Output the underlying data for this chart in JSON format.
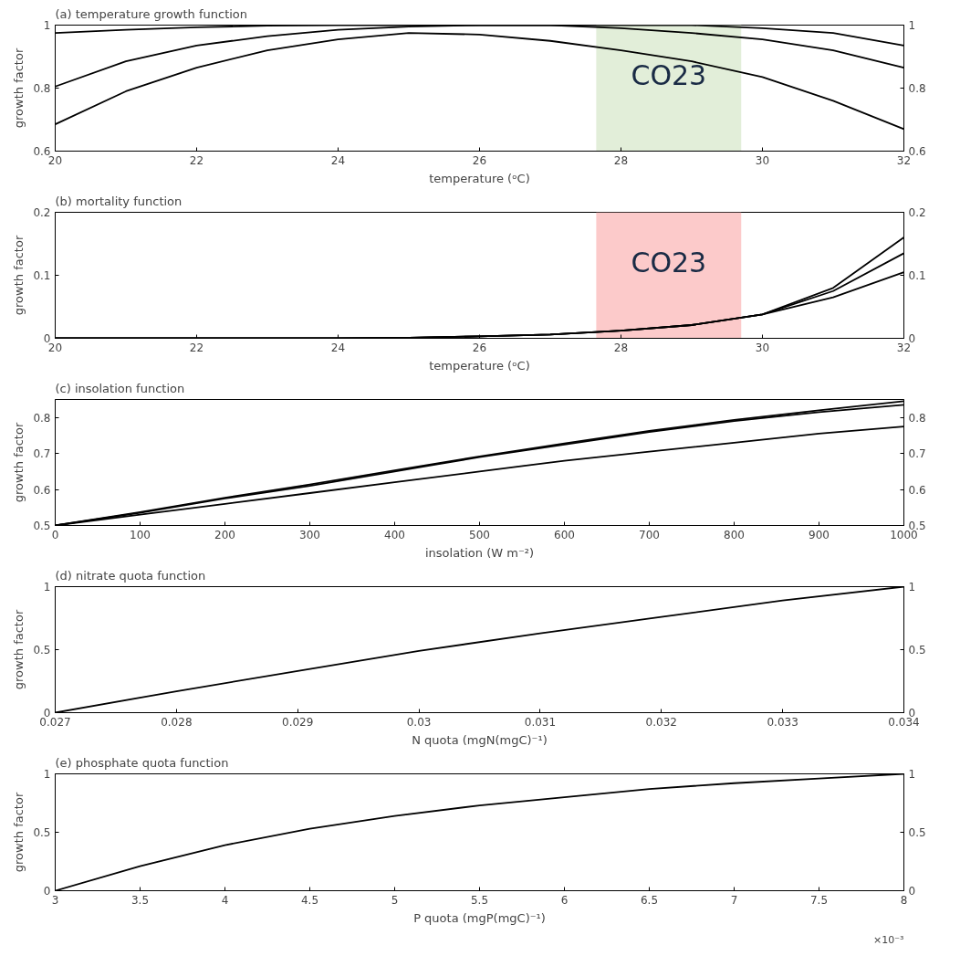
{
  "chart_data": [
    {
      "type": "line",
      "title": "(a) temperature growth function",
      "xlabel": "temperature (ᵒC)",
      "ylabel": "growth factor",
      "x": [
        20,
        21,
        22,
        23,
        24,
        25,
        26,
        27,
        28,
        29,
        30,
        31,
        32
      ],
      "series": [
        {
          "color": "#000000",
          "values": [
            0.975,
            0.985,
            0.993,
            0.998,
            1,
            1,
            1,
            1,
            1,
            1,
            0.99,
            0.975,
            0.935
          ]
        },
        {
          "color": "#000000",
          "values": [
            0.805,
            0.885,
            0.935,
            0.965,
            0.985,
            0.995,
            1,
            1,
            0.99,
            0.975,
            0.955,
            0.92,
            0.865
          ]
        },
        {
          "color": "#000000",
          "values": [
            0.685,
            0.79,
            0.865,
            0.92,
            0.955,
            0.975,
            0.97,
            0.95,
            0.92,
            0.885,
            0.835,
            0.76,
            0.67
          ]
        }
      ],
      "xlim": [
        20,
        32
      ],
      "xticks": [
        20,
        22,
        24,
        26,
        28,
        30,
        32
      ],
      "ylim": [
        0.6,
        1
      ],
      "yticks": [
        0.6,
        0.8,
        1
      ],
      "y2lim": [
        0.6,
        1
      ],
      "y2ticks": [
        0.6,
        0.8,
        1
      ],
      "bands": [
        {
          "axis": "x",
          "from": 27.65,
          "to": 29.7,
          "label": "CO23",
          "color": "#e2eed9"
        }
      ],
      "grid": false
    },
    {
      "type": "line",
      "title": "(b) mortality function",
      "xlabel": "temperature (ᵒC)",
      "ylabel": "growth factor",
      "x": [
        20,
        21,
        22,
        23,
        24,
        25,
        26,
        27,
        28,
        29,
        30,
        31,
        32
      ],
      "series": [
        {
          "color": "#000000",
          "values": [
            0,
            0,
            0,
            0,
            0,
            0.001,
            0.003,
            0.006,
            0.012,
            0.021,
            0.038,
            0.08,
            0.16
          ]
        },
        {
          "color": "#000000",
          "values": [
            0,
            0,
            0,
            0,
            0,
            0.001,
            0.003,
            0.006,
            0.012,
            0.021,
            0.038,
            0.075,
            0.135
          ]
        },
        {
          "color": "#000000",
          "values": [
            0,
            0,
            0,
            0,
            0,
            0.001,
            0.003,
            0.006,
            0.012,
            0.021,
            0.038,
            0.065,
            0.105
          ]
        }
      ],
      "xlim": [
        20,
        32
      ],
      "xticks": [
        20,
        22,
        24,
        26,
        28,
        30,
        32
      ],
      "ylim": [
        0,
        0.2
      ],
      "yticks": [
        0,
        0.1,
        0.2
      ],
      "y2lim": [
        0,
        0.2
      ],
      "y2ticks": [
        0,
        0.1,
        0.2
      ],
      "bands": [
        {
          "axis": "x",
          "from": 27.65,
          "to": 29.7,
          "label": "CO23",
          "color": "#fccaca"
        }
      ],
      "grid": false
    },
    {
      "type": "line",
      "title": "(c) insolation function",
      "xlabel": "insolation (W m⁻²)",
      "ylabel": "growth factor",
      "x": [
        0,
        100,
        200,
        300,
        400,
        500,
        600,
        700,
        800,
        900,
        1000
      ],
      "series": [
        {
          "color": "#000000",
          "values": [
            0.5,
            0.537,
            0.577,
            0.614,
            0.653,
            0.692,
            0.728,
            0.763,
            0.793,
            0.82,
            0.845
          ]
        },
        {
          "color": "#000000",
          "values": [
            0.5,
            0.535,
            0.575,
            0.61,
            0.65,
            0.69,
            0.725,
            0.76,
            0.79,
            0.815,
            0.835
          ]
        },
        {
          "color": "#000000",
          "values": [
            0.5,
            0.53,
            0.56,
            0.59,
            0.62,
            0.65,
            0.68,
            0.705,
            0.73,
            0.755,
            0.775
          ]
        }
      ],
      "xlim": [
        0,
        1000
      ],
      "xticks": [
        0,
        100,
        200,
        300,
        400,
        500,
        600,
        700,
        800,
        900,
        1000
      ],
      "ylim": [
        0.5,
        0.85
      ],
      "yticks": [
        0.5,
        0.6,
        0.7,
        0.8
      ],
      "y2lim": [
        0.5,
        0.85
      ],
      "y2ticks": [
        0.5,
        0.6,
        0.7,
        0.8
      ],
      "grid": false
    },
    {
      "type": "line",
      "title": "(d) nitrate quota function",
      "xlabel": "N quota (mgN(mgC)⁻¹)",
      "ylabel": "growth factor",
      "x": [
        0.027,
        0.028,
        0.029,
        0.03,
        0.031,
        0.032,
        0.033,
        0.034
      ],
      "series": [
        {
          "color": "#000000",
          "values": [
            0,
            0.17,
            0.33,
            0.49,
            0.63,
            0.76,
            0.89,
            1
          ]
        }
      ],
      "xlim": [
        0.027,
        0.034
      ],
      "xticks": [
        0.027,
        0.028,
        0.029,
        0.03,
        0.031,
        0.032,
        0.033,
        0.034
      ],
      "ylim": [
        0,
        1
      ],
      "yticks": [
        0,
        0.5,
        1
      ],
      "y2lim": [
        0,
        1
      ],
      "y2ticks": [
        0,
        0.5,
        1
      ],
      "grid": false
    },
    {
      "type": "line",
      "title": "(e) phosphate quota function",
      "xlabel": "P quota (mgP(mgC)⁻¹)",
      "ylabel": "growth factor",
      "annotations": [
        "×10⁻³"
      ],
      "x": [
        3,
        3.5,
        4,
        4.5,
        5,
        5.5,
        6,
        6.5,
        7,
        7.5,
        8
      ],
      "series": [
        {
          "color": "#000000",
          "values": [
            0,
            0.21,
            0.39,
            0.53,
            0.64,
            0.73,
            0.8,
            0.87,
            0.92,
            0.96,
            1
          ]
        }
      ],
      "xlim": [
        3,
        8
      ],
      "xticks": [
        3,
        3.5,
        4,
        4.5,
        5,
        5.5,
        6,
        6.5,
        7,
        7.5,
        8
      ],
      "ylim": [
        0,
        1
      ],
      "yticks": [
        0,
        0.5,
        1
      ],
      "y2lim": [
        0,
        1
      ],
      "y2ticks": [
        0,
        0.5,
        1
      ],
      "grid": false
    }
  ]
}
